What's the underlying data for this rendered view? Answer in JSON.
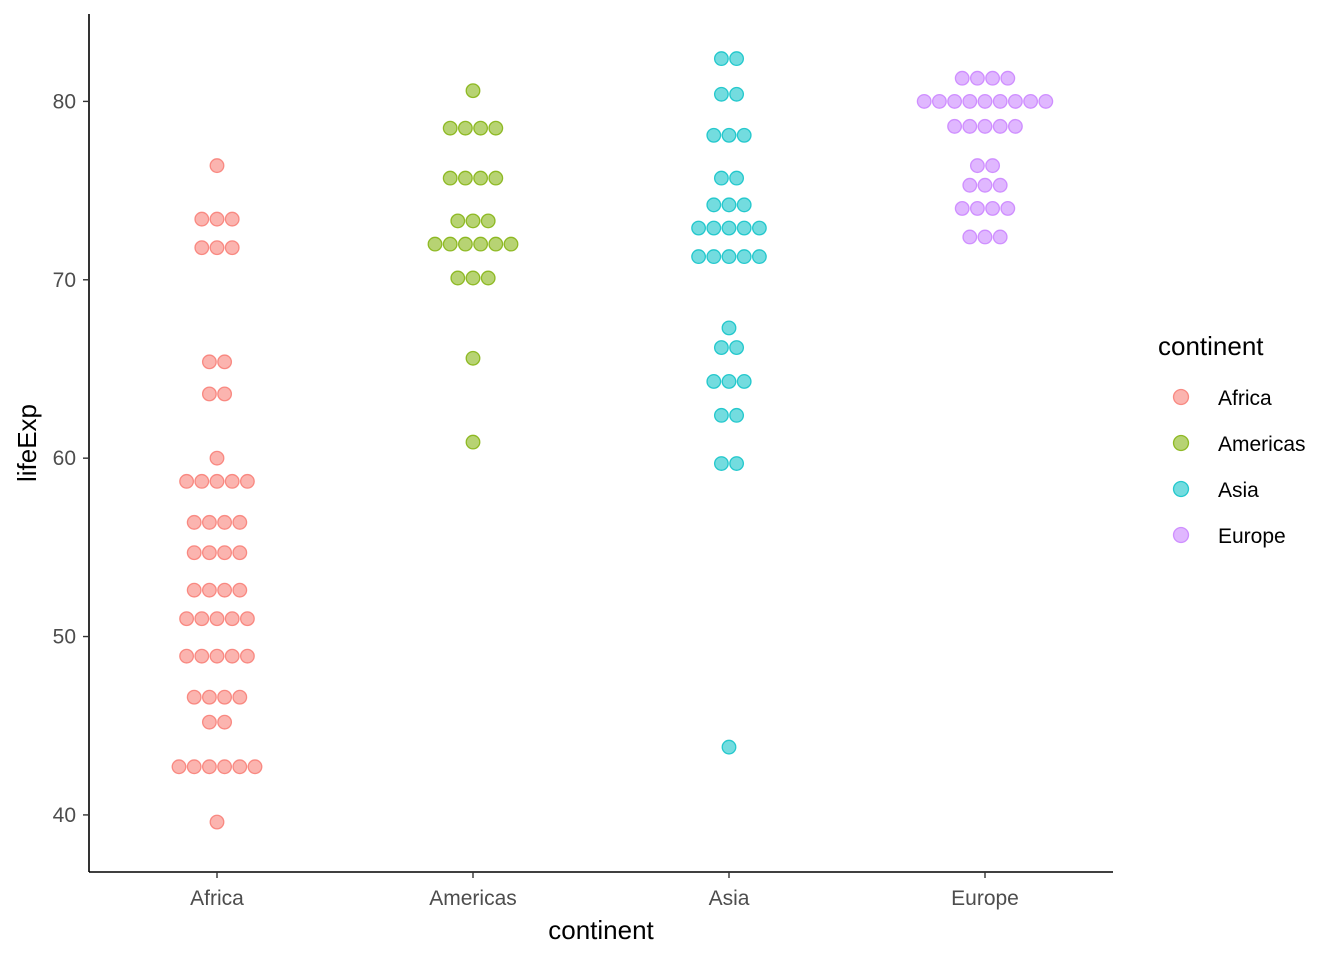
{
  "chart_data": {
    "type": "scatter",
    "subtype": "dotplot",
    "xlabel": "continent",
    "ylabel": "lifeExp",
    "categories": [
      "Africa",
      "Americas",
      "Asia",
      "Europe"
    ],
    "ylim": [
      36.8,
      84.9
    ],
    "yticks": [
      40,
      50,
      60,
      70,
      80
    ],
    "grid": false,
    "legend": {
      "title": "continent",
      "position": "right",
      "entries": [
        "Africa",
        "Americas",
        "Asia",
        "Europe"
      ]
    },
    "colors": {
      "Africa": "#F8766D",
      "Americas": "#7CAE00",
      "Asia": "#00BFC4",
      "Europe": "#C77CFF"
    },
    "point_alpha": 0.55,
    "series": [
      {
        "name": "Africa",
        "bins": [
          {
            "y": 76.4,
            "count": 1
          },
          {
            "y": 73.4,
            "count": 3
          },
          {
            "y": 71.8,
            "count": 3
          },
          {
            "y": 65.4,
            "count": 2
          },
          {
            "y": 63.6,
            "count": 2
          },
          {
            "y": 60.0,
            "count": 1
          },
          {
            "y": 58.7,
            "count": 5
          },
          {
            "y": 56.4,
            "count": 4
          },
          {
            "y": 54.7,
            "count": 4
          },
          {
            "y": 52.6,
            "count": 4
          },
          {
            "y": 51.0,
            "count": 5
          },
          {
            "y": 48.9,
            "count": 5
          },
          {
            "y": 46.6,
            "count": 4
          },
          {
            "y": 45.2,
            "count": 2
          },
          {
            "y": 42.7,
            "count": 6
          },
          {
            "y": 39.6,
            "count": 1
          }
        ]
      },
      {
        "name": "Americas",
        "bins": [
          {
            "y": 80.6,
            "count": 1
          },
          {
            "y": 78.5,
            "count": 4
          },
          {
            "y": 75.7,
            "count": 4
          },
          {
            "y": 73.3,
            "count": 3
          },
          {
            "y": 72.0,
            "count": 6
          },
          {
            "y": 70.1,
            "count": 3
          },
          {
            "y": 65.6,
            "count": 1
          },
          {
            "y": 60.9,
            "count": 1
          }
        ]
      },
      {
        "name": "Asia",
        "bins": [
          {
            "y": 82.4,
            "count": 2
          },
          {
            "y": 80.4,
            "count": 2
          },
          {
            "y": 78.1,
            "count": 3
          },
          {
            "y": 75.7,
            "count": 2
          },
          {
            "y": 74.2,
            "count": 3
          },
          {
            "y": 72.9,
            "count": 5
          },
          {
            "y": 71.3,
            "count": 5
          },
          {
            "y": 67.3,
            "count": 1
          },
          {
            "y": 66.2,
            "count": 2
          },
          {
            "y": 64.3,
            "count": 3
          },
          {
            "y": 62.4,
            "count": 2
          },
          {
            "y": 59.7,
            "count": 2
          },
          {
            "y": 43.8,
            "count": 1
          }
        ]
      },
      {
        "name": "Europe",
        "bins": [
          {
            "y": 81.3,
            "count": 4
          },
          {
            "y": 80.0,
            "count": 9
          },
          {
            "y": 78.6,
            "count": 5
          },
          {
            "y": 76.4,
            "count": 2
          },
          {
            "y": 75.3,
            "count": 3
          },
          {
            "y": 74.0,
            "count": 4
          },
          {
            "y": 72.4,
            "count": 3
          }
        ]
      }
    ]
  }
}
